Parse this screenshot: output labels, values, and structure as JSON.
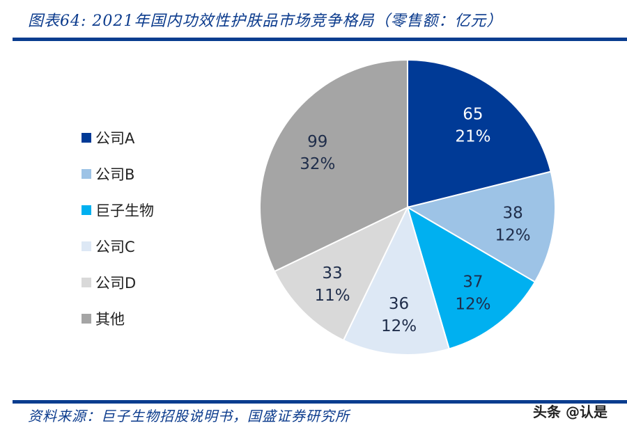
{
  "title": "图表64:  2021年国内功效性护肤品市场竞争格局（零售额：亿元）",
  "source": "资料来源：巨子生物招股说明书，国盛证券研究所",
  "watermark": "头条 @认是",
  "chart_data": {
    "type": "pie",
    "title": "图表64:  2021年国内功效性护肤品市场竞争格局（零售额：亿元）",
    "legend_position": "left",
    "categories": [
      "公司A",
      "公司B",
      "巨子生物",
      "公司C",
      "公司D",
      "其他"
    ],
    "values": [
      65,
      38,
      37,
      36,
      33,
      99
    ],
    "percent_labels": [
      "21%",
      "12%",
      "12%",
      "12%",
      "11%",
      "32%"
    ],
    "colors": [
      "#003a96",
      "#9dc3e6",
      "#00b0f0",
      "#dde8f5",
      "#d9d9d9",
      "#a5a5a5"
    ],
    "label_colors": [
      "#ffffff",
      "#1f2d4a",
      "#1f2d4a",
      "#1f2d4a",
      "#1f2d4a",
      "#1f2d4a"
    ]
  }
}
